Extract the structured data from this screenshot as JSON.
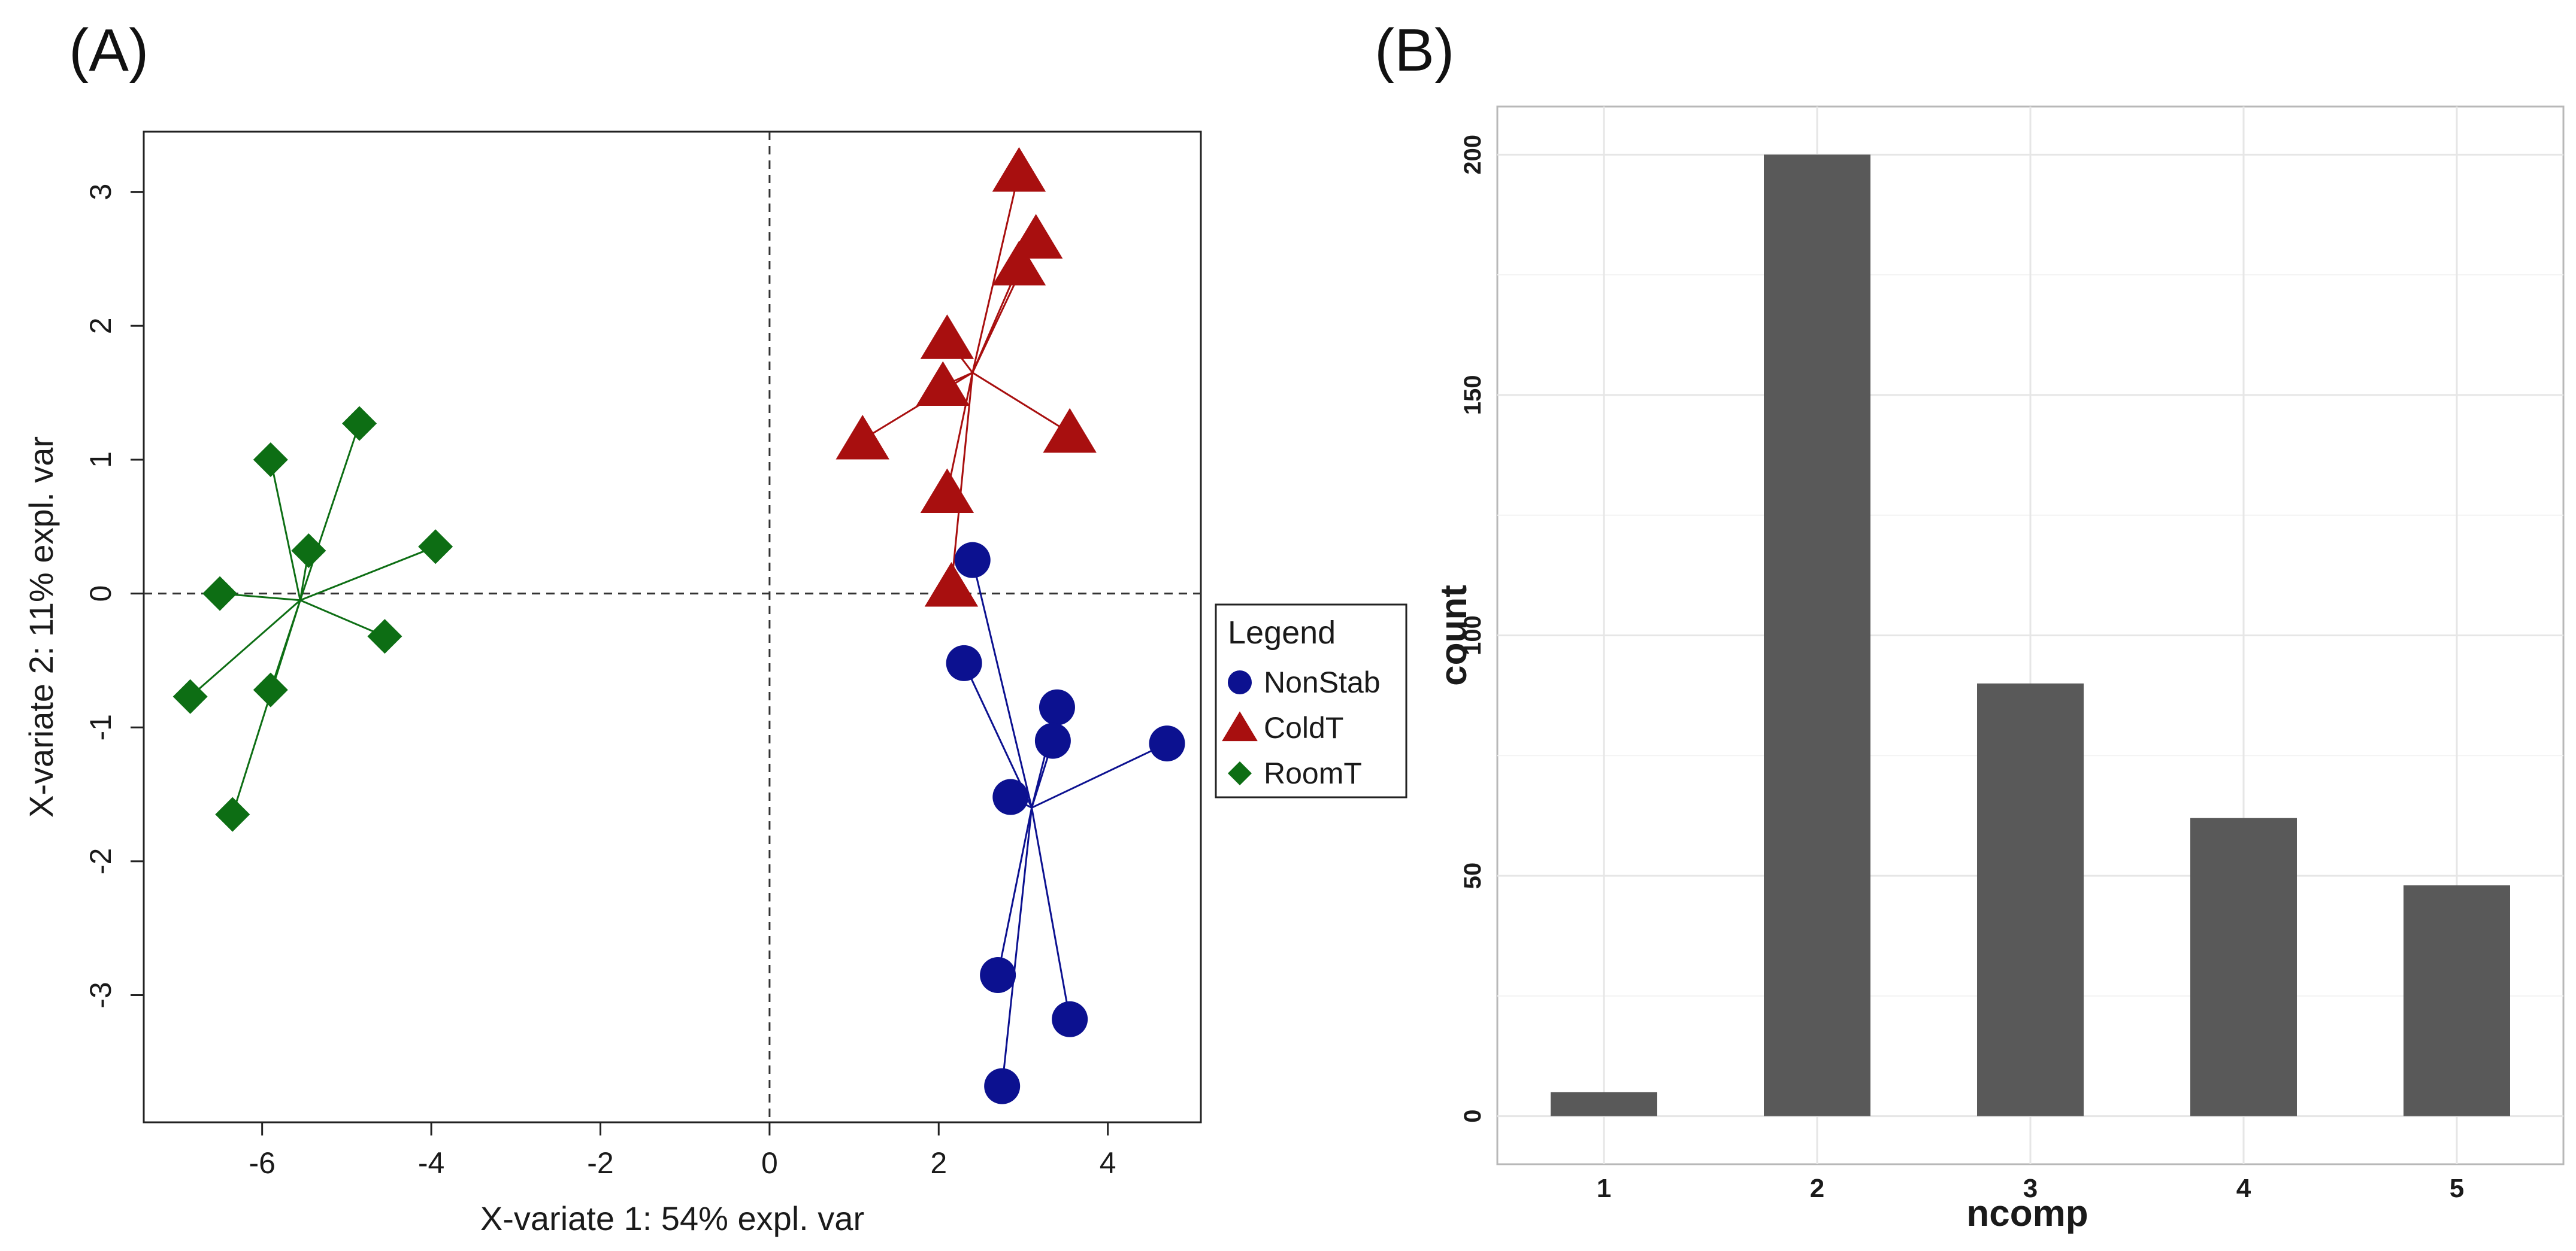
{
  "panels": {
    "a_label": "(A)",
    "b_label": "(B)"
  },
  "chart_data": [
    {
      "type": "scatter",
      "panel": "(A)",
      "xlabel": "X-variate 1: 54% expl. var",
      "ylabel": "X-variate 2: 11% expl. var",
      "xlim": [
        -7.4,
        5.1
      ],
      "ylim": [
        -3.95,
        3.45
      ],
      "xticks": [
        -6,
        -4,
        -2,
        0,
        2,
        4
      ],
      "yticks": [
        -3,
        -2,
        -1,
        0,
        1,
        2,
        3
      ],
      "reference_lines": {
        "x": 0,
        "y": 0,
        "style": "dashed"
      },
      "legend": {
        "title": "Legend",
        "position": "right",
        "entries": [
          "NonStab",
          "ColdT",
          "RoomT"
        ]
      },
      "series": [
        {
          "name": "NonStab",
          "marker": "circle",
          "color": "#0c1190",
          "centroid": [
            3.1,
            -1.6
          ],
          "points": [
            [
              2.4,
              0.25
            ],
            [
              2.3,
              -0.52
            ],
            [
              3.4,
              -0.85
            ],
            [
              3.35,
              -1.1
            ],
            [
              4.7,
              -1.12
            ],
            [
              2.85,
              -1.52
            ],
            [
              2.7,
              -2.85
            ],
            [
              3.55,
              -3.18
            ],
            [
              2.75,
              -3.68
            ]
          ]
        },
        {
          "name": "ColdT",
          "marker": "triangle",
          "color": "#a80f0f",
          "centroid": [
            2.4,
            1.65
          ],
          "points": [
            [
              2.95,
              3.15
            ],
            [
              3.15,
              2.65
            ],
            [
              2.95,
              2.45
            ],
            [
              2.1,
              1.9
            ],
            [
              2.05,
              1.55
            ],
            [
              1.1,
              1.15
            ],
            [
              3.55,
              1.2
            ],
            [
              2.1,
              0.75
            ],
            [
              2.15,
              0.05
            ]
          ]
        },
        {
          "name": "RoomT",
          "marker": "diamond",
          "color": "#0d6e14",
          "centroid": [
            -5.55,
            -0.05
          ],
          "points": [
            [
              -4.85,
              1.27
            ],
            [
              -5.9,
              1.0
            ],
            [
              -5.45,
              0.32
            ],
            [
              -3.95,
              0.35
            ],
            [
              -6.5,
              0.0
            ],
            [
              -4.55,
              -0.32
            ],
            [
              -6.85,
              -0.77
            ],
            [
              -5.9,
              -0.72
            ],
            [
              -6.35,
              -1.65
            ]
          ]
        }
      ]
    },
    {
      "type": "bar",
      "panel": "(B)",
      "xlabel": "ncomp",
      "ylabel": "count",
      "categories": [
        "1",
        "2",
        "3",
        "4",
        "5"
      ],
      "values": [
        5,
        200,
        90,
        62,
        48
      ],
      "ylim": [
        -10,
        210
      ],
      "yticks": [
        0,
        50,
        100,
        150,
        200
      ],
      "grid": true,
      "bar_color": "#595959"
    }
  ]
}
